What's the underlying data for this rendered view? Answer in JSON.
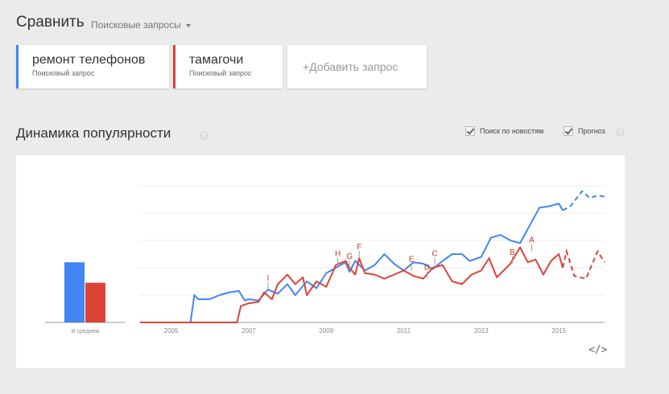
{
  "header": {
    "title": "Сравнить",
    "type_selector": "Поисковые запросы"
  },
  "terms": [
    {
      "label": "ремонт телефонов",
      "type": "Поисковый запрос",
      "color": "#4285f4"
    },
    {
      "label": "тамагочи",
      "type": "Поисковый запрос",
      "color": "#db4437"
    }
  ],
  "add_term": "+Добавить запрос",
  "section": {
    "title": "Динамика популярности",
    "news_checkbox": "Поиск по новостям",
    "forecast_checkbox": "Прогноз",
    "help_icon": "?"
  },
  "embed_icon": "</>",
  "chart_data": {
    "type": "line",
    "xlim": [
      2004.2,
      2016.18
    ],
    "ylim": [
      0,
      100
    ],
    "grid": true,
    "yticks": [
      0,
      20,
      40,
      60,
      80,
      100
    ],
    "xticks": [
      "2005",
      "2007",
      "2009",
      "2011",
      "2013",
      "2015"
    ],
    "average": {
      "label": "В среднем",
      "values": [
        44,
        29
      ]
    },
    "series": [
      {
        "name": "ремонт телефонов",
        "color": "#4285f4",
        "values": [
          [
            2004.2,
            0
          ],
          [
            2005.5,
            0
          ],
          [
            2005.6,
            20
          ],
          [
            2005.7,
            17
          ],
          [
            2006,
            17
          ],
          [
            2006.25,
            20
          ],
          [
            2006.5,
            22
          ],
          [
            2006.75,
            23
          ],
          [
            2006.9,
            16
          ],
          [
            2007,
            17
          ],
          [
            2007.25,
            16
          ],
          [
            2007.5,
            24
          ],
          [
            2007.75,
            21
          ],
          [
            2008,
            28
          ],
          [
            2008.2,
            20
          ],
          [
            2008.5,
            30
          ],
          [
            2008.75,
            25
          ],
          [
            2009,
            36
          ],
          [
            2009.25,
            40
          ],
          [
            2009.5,
            44
          ],
          [
            2009.6,
            37
          ],
          [
            2009.75,
            45
          ],
          [
            2010,
            38
          ],
          [
            2010.25,
            42
          ],
          [
            2010.5,
            50
          ],
          [
            2010.75,
            43
          ],
          [
            2011,
            38
          ],
          [
            2011.25,
            44
          ],
          [
            2011.5,
            43
          ],
          [
            2011.75,
            39
          ],
          [
            2012,
            45
          ],
          [
            2012.25,
            50
          ],
          [
            2012.5,
            50
          ],
          [
            2012.7,
            45
          ],
          [
            2013,
            48
          ],
          [
            2013.25,
            62
          ],
          [
            2013.5,
            64
          ],
          [
            2013.75,
            60
          ],
          [
            2014,
            58
          ],
          [
            2014.25,
            71
          ],
          [
            2014.5,
            84
          ],
          [
            2014.75,
            85
          ],
          [
            2015,
            87
          ],
          [
            2015.1,
            82
          ]
        ],
        "forecast": [
          [
            2015.1,
            82
          ],
          [
            2015.3,
            85
          ],
          [
            2015.6,
            96
          ],
          [
            2015.8,
            91
          ],
          [
            2016,
            93
          ],
          [
            2016.18,
            92
          ]
        ]
      },
      {
        "name": "тамагочи",
        "color": "#db4437",
        "values": [
          [
            2004.2,
            0
          ],
          [
            2006.7,
            0
          ],
          [
            2006.8,
            12
          ],
          [
            2007,
            14
          ],
          [
            2007.25,
            15
          ],
          [
            2007.4,
            22
          ],
          [
            2007.6,
            17
          ],
          [
            2007.75,
            28
          ],
          [
            2008,
            35
          ],
          [
            2008.2,
            28
          ],
          [
            2008.4,
            33
          ],
          [
            2008.5,
            20
          ],
          [
            2008.75,
            30
          ],
          [
            2009,
            26
          ],
          [
            2009.25,
            42
          ],
          [
            2009.5,
            45
          ],
          [
            2009.6,
            40
          ],
          [
            2009.75,
            35
          ],
          [
            2009.85,
            47
          ],
          [
            2010,
            36
          ],
          [
            2010.25,
            35
          ],
          [
            2010.5,
            32
          ],
          [
            2010.75,
            35
          ],
          [
            2011,
            38
          ],
          [
            2011.25,
            34
          ],
          [
            2011.5,
            32
          ],
          [
            2011.75,
            40
          ],
          [
            2012,
            42
          ],
          [
            2012.25,
            30
          ],
          [
            2012.5,
            28
          ],
          [
            2012.75,
            35
          ],
          [
            2013,
            38
          ],
          [
            2013.2,
            47
          ],
          [
            2013.4,
            33
          ],
          [
            2013.75,
            43
          ],
          [
            2014,
            55
          ],
          [
            2014.2,
            44
          ],
          [
            2014.4,
            46
          ],
          [
            2014.6,
            35
          ],
          [
            2014.8,
            45
          ],
          [
            2015,
            50
          ],
          [
            2015.1,
            40
          ]
        ],
        "forecast": [
          [
            2015.1,
            40
          ],
          [
            2015.2,
            52
          ],
          [
            2015.4,
            34
          ],
          [
            2015.7,
            32
          ],
          [
            2016,
            52
          ],
          [
            2016.18,
            44
          ]
        ]
      }
    ],
    "annotations": [
      {
        "label": "I",
        "x": 2007.5,
        "y": 24
      },
      {
        "label": "H",
        "x": 2009.3,
        "y": 42
      },
      {
        "label": "G",
        "x": 2009.6,
        "y": 40
      },
      {
        "label": "F",
        "x": 2009.85,
        "y": 47
      },
      {
        "label": "E",
        "x": 2011.2,
        "y": 38
      },
      {
        "label": "D",
        "x": 2011.6,
        "y": 32
      },
      {
        "label": "C",
        "x": 2011.8,
        "y": 42
      },
      {
        "label": "B",
        "x": 2013.8,
        "y": 43
      },
      {
        "label": "A",
        "x": 2014.3,
        "y": 52
      }
    ]
  }
}
